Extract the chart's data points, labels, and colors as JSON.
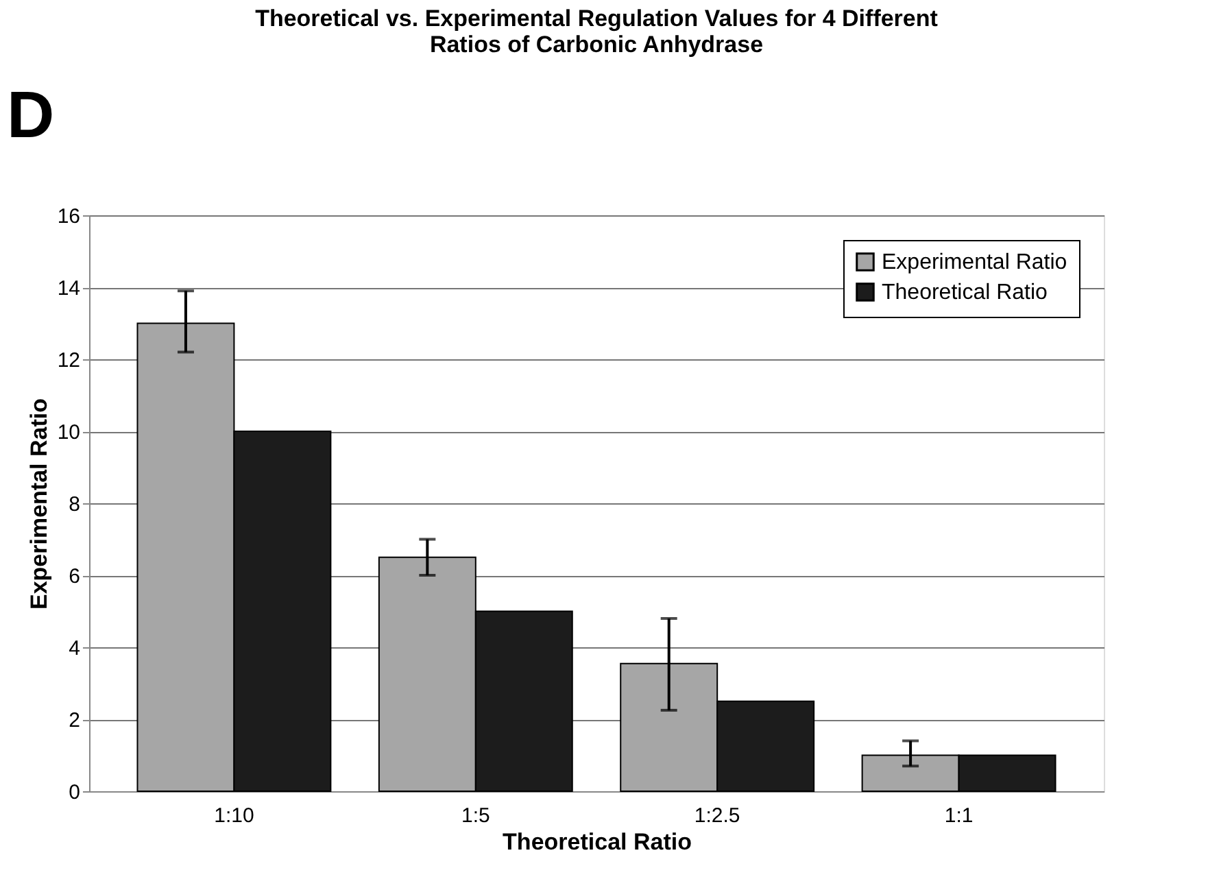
{
  "chart_data": {
    "type": "bar",
    "title": "Theoretical vs. Experimental Regulation Values for 4 Different Ratios of Carbonic Anhydrase",
    "xlabel": "Theoretical Ratio",
    "ylabel": "Experimental Ratio",
    "categories": [
      "1:10",
      "1:5",
      "1:2.5",
      "1:1"
    ],
    "series": [
      {
        "name": "Experimental Ratio",
        "color": "#a6a6a6",
        "values": [
          13,
          6.5,
          3.55,
          1.0
        ],
        "errors": [
          [
            12.2,
            13.9
          ],
          [
            6.0,
            7.0
          ],
          [
            2.25,
            4.8
          ],
          [
            0.7,
            1.4
          ]
        ]
      },
      {
        "name": "Theoretical Ratio",
        "color": "#1c1c1c",
        "values": [
          10,
          5,
          2.5,
          1
        ]
      }
    ],
    "ylim": [
      0,
      16
    ],
    "yticks": [
      0,
      2,
      4,
      6,
      8,
      10,
      12,
      14,
      16
    ],
    "grid": "y",
    "legend": "top right",
    "annotations": [
      "D"
    ]
  }
}
